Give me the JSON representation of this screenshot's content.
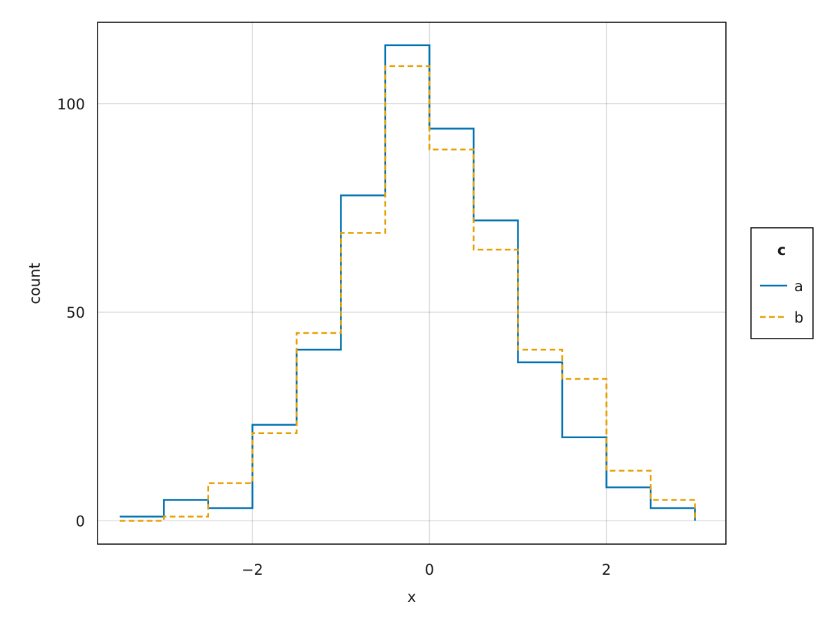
{
  "chart_data": {
    "type": "histogram-step",
    "xlabel": "x",
    "ylabel": "count",
    "xlim": [
      -3.75,
      3.35
    ],
    "ylim": [
      -5.6,
      119.5
    ],
    "x_ticks": [
      -2,
      0,
      2
    ],
    "y_ticks": [
      0,
      50,
      100
    ],
    "x_tick_labels": [
      "−2",
      "0",
      "2"
    ],
    "y_tick_labels": [
      "0",
      "50",
      "100"
    ],
    "grid": true,
    "legend": {
      "title": "c",
      "placement": "right"
    },
    "bin_edges": [
      -3.5,
      -3.0,
      -2.5,
      -2.0,
      -1.5,
      -1.0,
      -0.5,
      0.0,
      0.5,
      1.0,
      1.5,
      2.0,
      2.5,
      3.0
    ],
    "series": [
      {
        "name": "a",
        "color": "#0072b2",
        "dash": "solid",
        "values": [
          1,
          5,
          3,
          23,
          41,
          78,
          114,
          94,
          72,
          38,
          20,
          8,
          3
        ]
      },
      {
        "name": "b",
        "color": "#e69f00",
        "dash": "dashed",
        "values": [
          0,
          1,
          9,
          21,
          45,
          69,
          109,
          89,
          65,
          41,
          34,
          12,
          5
        ]
      }
    ]
  }
}
